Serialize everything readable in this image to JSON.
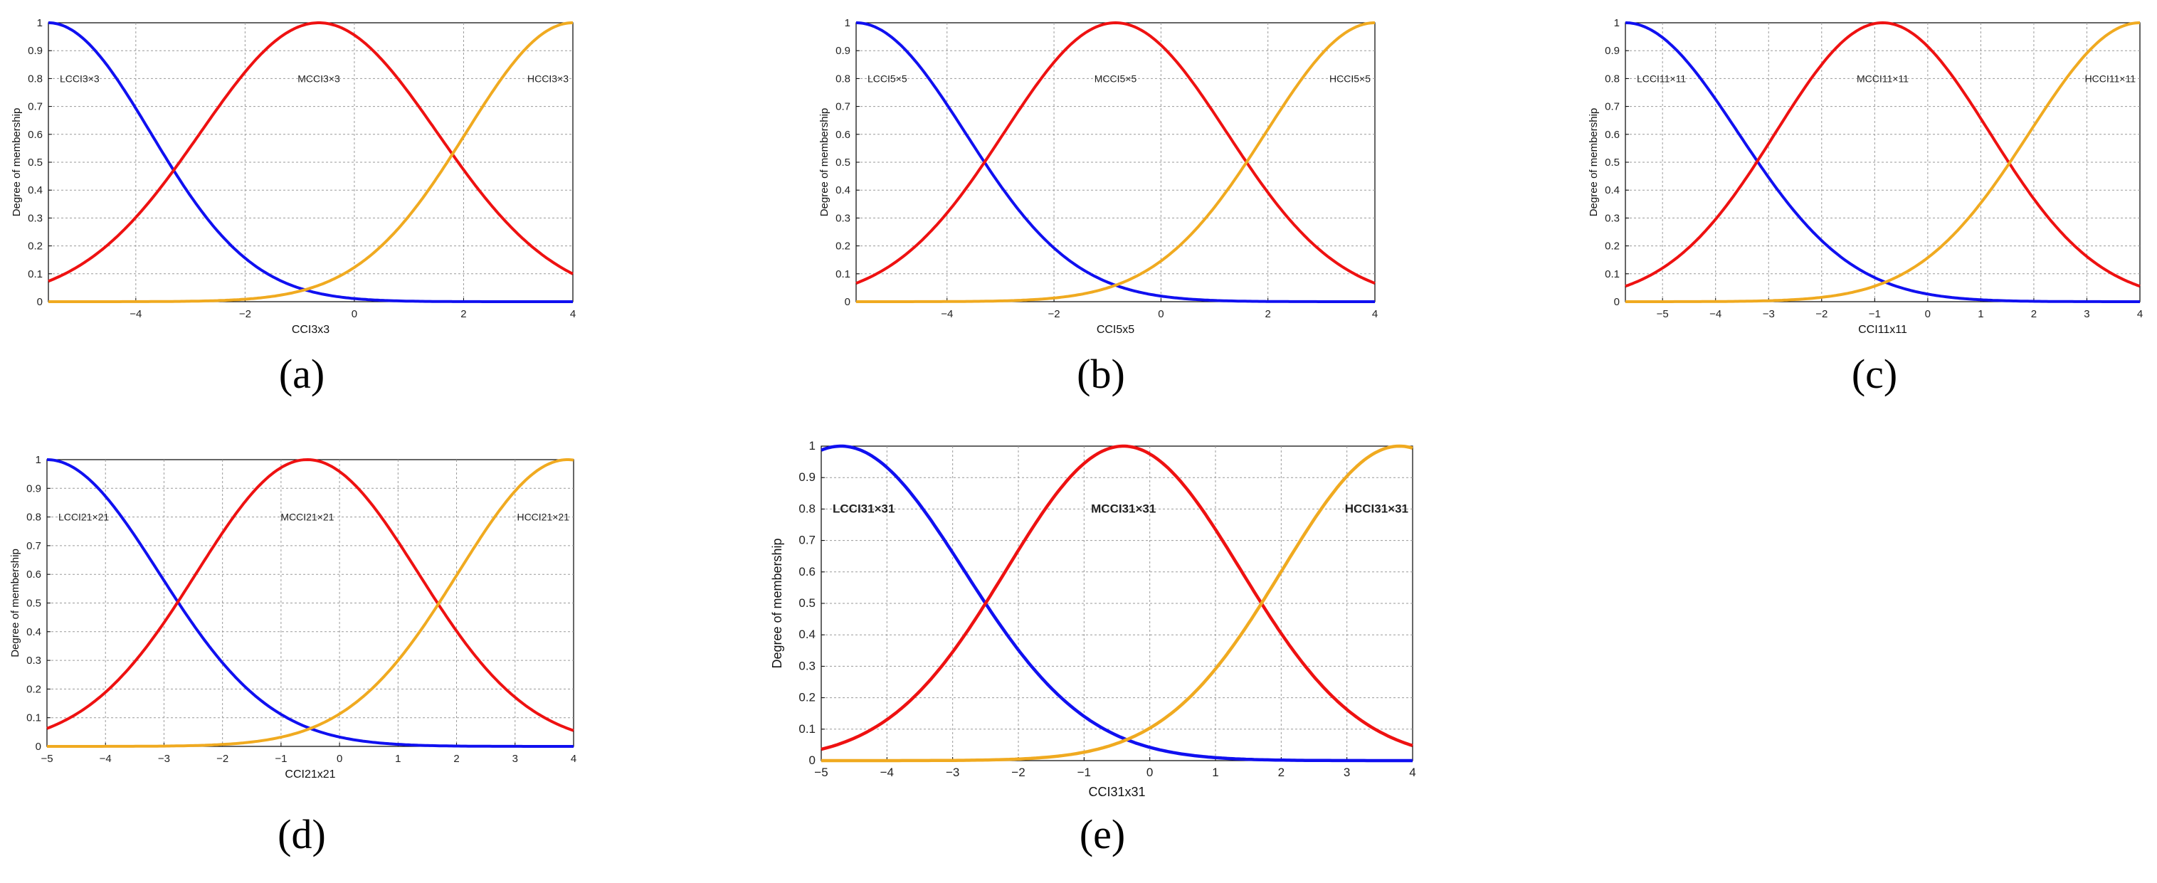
{
  "figure": {
    "ylabel": "Degree of membership",
    "colors": {
      "low": "#1010f0",
      "mid": "#ee1111",
      "high": "#f0aa20",
      "grid": "#9a9a9a",
      "axis": "#000000"
    },
    "y_ticks": [
      "0",
      "0.1",
      "0.2",
      "0.3",
      "0.4",
      "0.5",
      "0.6",
      "0.7",
      "0.8",
      "0.9",
      "1"
    ]
  },
  "chart_data": [
    {
      "type": "line",
      "panel_label": "(a)",
      "xlabel": "CCI3x3",
      "ylabel": "Degree of membership",
      "xlim": [
        -5.6,
        4
      ],
      "ylim": [
        0,
        1
      ],
      "x_ticks": [
        -4,
        -2,
        0,
        2,
        4
      ],
      "x_tick_labels": [
        "−4",
        "−2",
        "0",
        "2",
        "4"
      ],
      "grid": true,
      "series": [
        {
          "name": "LCCI3×3",
          "shape": "gauss-left",
          "center": -5.6,
          "crossover_with_mid": -3.4,
          "color_key": "low"
        },
        {
          "name": "MCCI3×3",
          "shape": "gauss",
          "center": -0.65,
          "crossover_with_high": 1.7,
          "color_key": "mid"
        },
        {
          "name": "HCCI3×3",
          "shape": "gauss-right",
          "center": 4,
          "color_key": "high"
        }
      ]
    },
    {
      "type": "line",
      "panel_label": "(b)",
      "xlabel": "CCI5x5",
      "ylabel": "Degree of membership",
      "xlim": [
        -5.7,
        4
      ],
      "ylim": [
        0,
        1
      ],
      "x_ticks": [
        -4,
        -2,
        0,
        2,
        4
      ],
      "x_tick_labels": [
        "−4",
        "−2",
        "0",
        "2",
        "4"
      ],
      "grid": true,
      "series": [
        {
          "name": "LCCI5×5",
          "shape": "gauss-left",
          "center": -5.7,
          "crossover_with_mid": -3.3,
          "color_key": "low"
        },
        {
          "name": "MCCI5×5",
          "shape": "gauss",
          "center": -0.85,
          "crossover_with_high": 1.6,
          "color_key": "mid"
        },
        {
          "name": "HCCI5×5",
          "shape": "gauss-right",
          "center": 4,
          "color_key": "high"
        }
      ]
    },
    {
      "type": "line",
      "panel_label": "(c)",
      "xlabel": "CCI11x11",
      "ylabel": "Degree of membership",
      "xlim": [
        -5.7,
        4
      ],
      "ylim": [
        0,
        1
      ],
      "x_ticks": [
        -5,
        -4,
        -3,
        -2,
        -1,
        0,
        1,
        2,
        3,
        4
      ],
      "x_tick_labels": [
        "−5",
        "−4",
        "−3",
        "−2",
        "−1",
        "0",
        "1",
        "2",
        "3",
        "4"
      ],
      "grid": true,
      "series": [
        {
          "name": "LCCI11×11",
          "shape": "gauss-left",
          "center": -5.7,
          "crossover_with_mid": -3.2,
          "color_key": "low"
        },
        {
          "name": "MCCI11×11",
          "shape": "gauss",
          "center": -0.85,
          "crossover_with_high": 1.55,
          "color_key": "mid"
        },
        {
          "name": "HCCI11×11",
          "shape": "gauss-right",
          "center": 4,
          "color_key": "high"
        }
      ]
    },
    {
      "type": "line",
      "panel_label": "(d)",
      "xlabel": "CCI21x21",
      "ylabel": "Degree of membership",
      "xlim": [
        -5,
        4
      ],
      "ylim": [
        0,
        1
      ],
      "x_ticks": [
        -5,
        -4,
        -3,
        -2,
        -1,
        0,
        1,
        2,
        3,
        4
      ],
      "x_tick_labels": [
        "−5",
        "−4",
        "−3",
        "−2",
        "−1",
        "0",
        "1",
        "2",
        "3",
        "4"
      ],
      "grid": true,
      "series": [
        {
          "name": "LCCI21×21",
          "shape": "gauss-left",
          "center": -5,
          "crossover_with_mid": -2.75,
          "color_key": "low"
        },
        {
          "name": "MCCI21×21",
          "shape": "gauss",
          "center": -0.55,
          "crossover_with_high": 1.7,
          "color_key": "mid"
        },
        {
          "name": "HCCI21×21",
          "shape": "gauss-right",
          "center": 3.9,
          "color_key": "high"
        }
      ]
    },
    {
      "type": "line",
      "panel_label": "(e)",
      "xlabel": "CCI31x31",
      "ylabel": "Degree of membership",
      "xlim": [
        -5,
        4
      ],
      "ylim": [
        0,
        1
      ],
      "x_ticks": [
        -5,
        -4,
        -3,
        -2,
        -1,
        0,
        1,
        2,
        3,
        4
      ],
      "x_tick_labels": [
        "−5",
        "−4",
        "−3",
        "−2",
        "−1",
        "0",
        "1",
        "2",
        "3",
        "4"
      ],
      "grid": true,
      "series": [
        {
          "name": "LCCI31×31",
          "shape": "gauss-left",
          "center": -4.7,
          "crossover_with_mid": -2.5,
          "color_key": "low"
        },
        {
          "name": "MCCI31×31",
          "shape": "gauss",
          "center": -0.4,
          "crossover_with_high": 1.7,
          "color_key": "mid"
        },
        {
          "name": "HCCI31×31",
          "shape": "gauss-right",
          "center": 3.8,
          "color_key": "high"
        }
      ]
    }
  ]
}
